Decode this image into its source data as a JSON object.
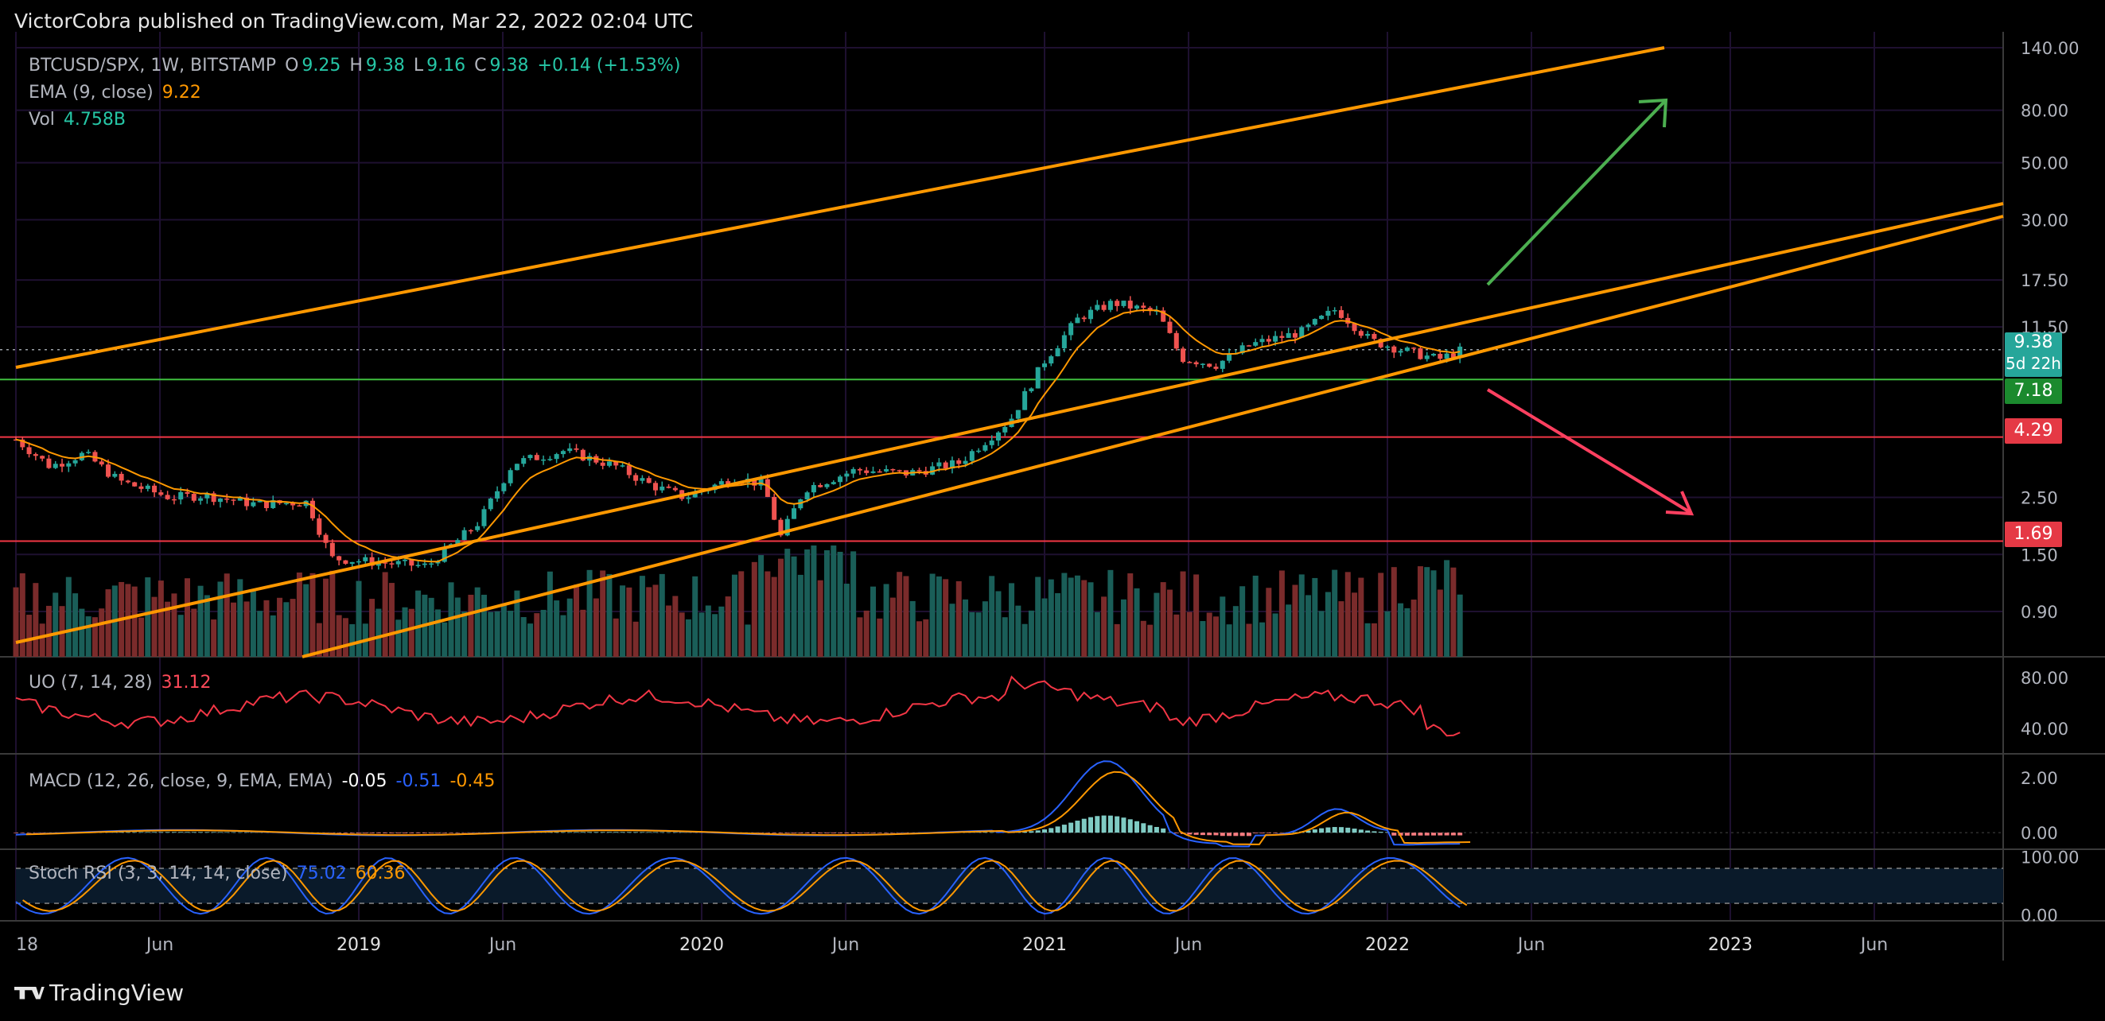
{
  "header": {
    "publisher": "VictorCobra published on TradingView.com, Mar 22, 2022 02:04 UTC"
  },
  "symbol": {
    "name": "BTCUSD/SPX, 1W, BITSTAMP",
    "o_label": "O",
    "o": "9.25",
    "h_label": "H",
    "h": "9.38",
    "l_label": "L",
    "l": "9.16",
    "c_label": "C",
    "c": "9.38",
    "change": "+0.14 (+1.53%)"
  },
  "ema": {
    "label": "EMA (9, close)",
    "value": "9.22"
  },
  "vol": {
    "label": "Vol",
    "value": "4.758B"
  },
  "uo": {
    "label": "UO (7, 14, 28)",
    "value": "31.12"
  },
  "macd": {
    "label": "MACD (12, 26, close, 9, EMA, EMA)",
    "v1": "-0.05",
    "v2": "-0.51",
    "v3": "-0.45"
  },
  "stoch": {
    "label": "Stoch RSI (3, 3, 14, 14, close)",
    "k": "75.02",
    "d": "60.36"
  },
  "badges": {
    "price": "9.38",
    "countdown": "5d 22h",
    "green_level": "7.18",
    "red_level_1": "4.29",
    "red_level_2": "1.69"
  },
  "footer": {
    "brand": "TradingView"
  },
  "colors": {
    "up": "#26a69a",
    "down": "#ef5350",
    "orange": "#ff9800",
    "green_arrow": "#4caf50",
    "red_arrow": "#ff4060",
    "grid": "#1e1030"
  },
  "chart_data": {
    "type": "candlestick",
    "symbol": "BTCUSD/SPX",
    "timeframe": "1W",
    "scale": "log",
    "price_axis_ticks": [
      "140.00",
      "80.00",
      "50.00",
      "30.00",
      "17.50",
      "11.50",
      "9.38",
      "7.18",
      "4.29",
      "2.50",
      "1.69",
      "1.50",
      "0.90"
    ],
    "time_axis_ticks": [
      "18",
      "Jun",
      "2019",
      "Jun",
      "2020",
      "Jun",
      "2021",
      "Jun",
      "2022",
      "Jun",
      "2023",
      "Jun"
    ],
    "horizontal_levels": [
      {
        "value": 7.18,
        "color": "green"
      },
      {
        "value": 4.29,
        "color": "red"
      },
      {
        "value": 1.69,
        "color": "red"
      }
    ],
    "ema_9_last": 9.22,
    "last_close": 9.38,
    "annotations": [
      "orange ascending channel lines",
      "green up arrow",
      "red down arrow"
    ],
    "indicators": {
      "uo": {
        "ticks": [
          "80.00",
          "40.00"
        ],
        "last": 31.12
      },
      "macd": {
        "ticks": [
          "2.00",
          "0.00"
        ],
        "macd": -0.51,
        "signal": -0.45,
        "hist": -0.05
      },
      "stoch_rsi": {
        "ticks": [
          "100.00",
          "0.00"
        ],
        "k": 75.02,
        "d": 60.36
      }
    }
  }
}
